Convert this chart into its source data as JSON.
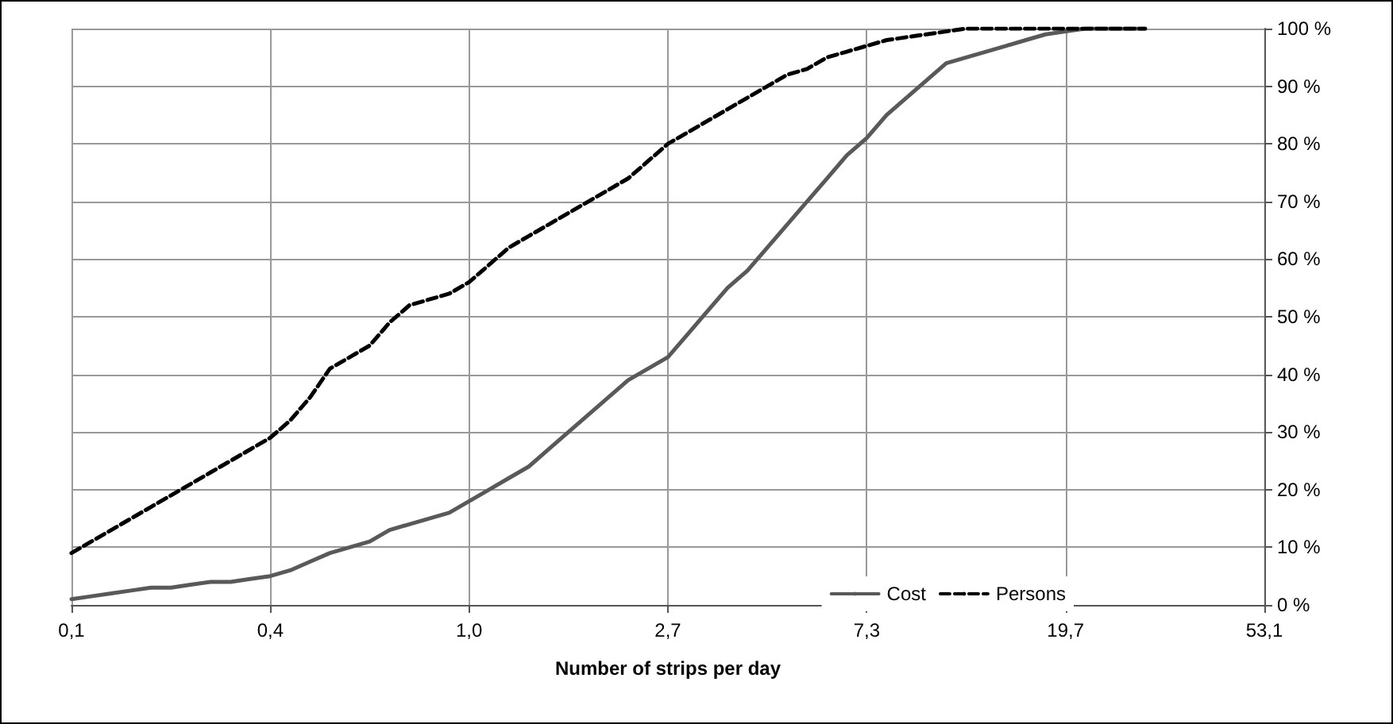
{
  "chart_data": {
    "type": "line",
    "xlabel": "Number of strips per day",
    "categories": [
      "0,1",
      null,
      null,
      null,
      null,
      null,
      null,
      null,
      null,
      null,
      "0,4",
      null,
      null,
      null,
      null,
      null,
      null,
      null,
      null,
      null,
      "1,0",
      null,
      null,
      null,
      null,
      null,
      null,
      null,
      null,
      null,
      "2,7",
      null,
      null,
      null,
      null,
      null,
      null,
      null,
      null,
      null,
      "7,3",
      null,
      null,
      null,
      null,
      null,
      null,
      null,
      null,
      null,
      "19,7",
      null,
      null,
      null,
      null,
      null,
      null,
      null,
      null,
      null,
      "53,1"
    ],
    "series": [
      {
        "name": "Cost",
        "color": "#595959",
        "line_style": "solid",
        "values": [
          1,
          1.5,
          2,
          2.5,
          3,
          3,
          3.5,
          4,
          4,
          4.5,
          5,
          6,
          7.5,
          9,
          10,
          11,
          13,
          14,
          15,
          16,
          18,
          20,
          22,
          24,
          27,
          30,
          33,
          36,
          39,
          41,
          43,
          47,
          51,
          55,
          58,
          62,
          66,
          70,
          74,
          78,
          81,
          85,
          88,
          91,
          94,
          95,
          96,
          97,
          98,
          99,
          99.5,
          100,
          100,
          100,
          100,
          null,
          null,
          null,
          null,
          null,
          null
        ]
      },
      {
        "name": "Persons",
        "color": "#000000",
        "line_style": "dashed",
        "values": [
          9,
          11,
          13,
          15,
          17,
          19,
          21,
          23,
          25,
          27,
          29,
          32,
          36,
          41,
          43,
          45,
          49,
          52,
          53,
          54,
          56,
          59,
          62,
          64,
          66,
          68,
          70,
          72,
          74,
          77,
          80,
          82,
          84,
          86,
          88,
          90,
          92,
          93,
          95,
          96,
          97,
          98,
          98.5,
          99,
          99.5,
          100,
          100,
          100,
          100,
          100,
          100,
          100,
          100,
          100,
          100,
          null,
          null,
          null,
          null,
          null,
          null
        ]
      }
    ],
    "ylim": [
      0,
      100
    ],
    "yticks": [
      {
        "value": 0,
        "label": "0 %"
      },
      {
        "value": 10,
        "label": "10 %"
      },
      {
        "value": 20,
        "label": "20 %"
      },
      {
        "value": 30,
        "label": "30 %"
      },
      {
        "value": 40,
        "label": "40 %"
      },
      {
        "value": 50,
        "label": "50 %"
      },
      {
        "value": 60,
        "label": "60 %"
      },
      {
        "value": 70,
        "label": "70 %"
      },
      {
        "value": 80,
        "label": "80 %"
      },
      {
        "value": 90,
        "label": "90 %"
      },
      {
        "value": 100,
        "label": "100 %"
      }
    ],
    "grid": true,
    "legend": "bottom right",
    "marker": "none"
  }
}
